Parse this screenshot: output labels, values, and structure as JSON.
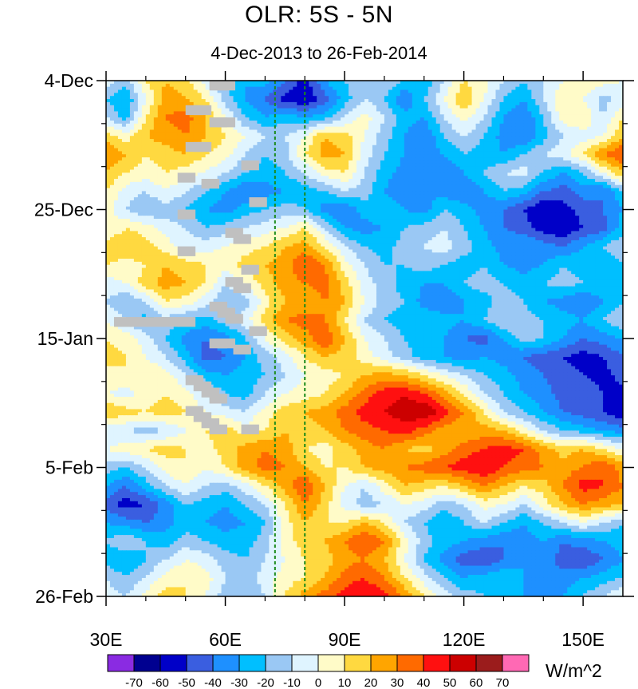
{
  "chart_data": {
    "type": "heatmap",
    "title": "OLR: 5S - 5N",
    "subtitle": "4-Dec-2013 to 26-Feb-2014",
    "xlabel": "",
    "ylabel": "",
    "xlim": [
      30,
      160
    ],
    "x_ticks": [
      {
        "value": 30,
        "label": "30E"
      },
      {
        "value": 60,
        "label": "60E"
      },
      {
        "value": 90,
        "label": "90E"
      },
      {
        "value": 120,
        "label": "120E"
      },
      {
        "value": 150,
        "label": "150E"
      }
    ],
    "ylim_days": [
      0,
      84
    ],
    "y_ticks": [
      {
        "day": 0,
        "label": "4-Dec"
      },
      {
        "day": 21,
        "label": "25-Dec"
      },
      {
        "day": 42,
        "label": "15-Jan"
      },
      {
        "day": 63,
        "label": "5-Feb"
      },
      {
        "day": 84,
        "label": "26-Feb"
      }
    ],
    "reference_lines_lon": [
      72.5,
      80
    ],
    "reference_line_color": "#1a8a1a",
    "missing_color": "#c0c0c0",
    "colorbar": {
      "unit_label": "W/m^2",
      "levels": [
        "-70",
        "-60",
        "-50",
        "-40",
        "-30",
        "-20",
        "-10",
        "0",
        "10",
        "20",
        "30",
        "40",
        "50",
        "60",
        "70"
      ],
      "colors": [
        "#8a2be2",
        "#000090",
        "#0000c8",
        "#3a5ee0",
        "#1e90ff",
        "#00bfff",
        "#9ac8f4",
        "#dff4ff",
        "#fffbc8",
        "#ffd940",
        "#ffa500",
        "#ff6a00",
        "#ff1010",
        "#cc0000",
        "#9b1c1c",
        "#ff69b4"
      ]
    },
    "anomaly_field": {
      "lon": [
        30,
        35,
        40,
        45,
        50,
        55,
        60,
        65,
        70,
        75,
        80,
        85,
        90,
        95,
        100,
        105,
        110,
        115,
        120,
        125,
        130,
        135,
        140,
        145,
        150,
        155,
        160
      ],
      "days": [
        0,
        3,
        6,
        9,
        12,
        15,
        18,
        21,
        24,
        27,
        30,
        33,
        36,
        39,
        42,
        45,
        48,
        51,
        54,
        57,
        60,
        63,
        66,
        69,
        72,
        75,
        78,
        81,
        84
      ],
      "values": [
        [
          -5,
          -15,
          10,
          20,
          15,
          -5,
          -20,
          -30,
          -25,
          -40,
          -55,
          -30,
          -20,
          -15,
          -10,
          -20,
          -30,
          -10,
          10,
          5,
          -10,
          -20,
          -10,
          0,
          10,
          5,
          0
        ],
        [
          -20,
          -30,
          0,
          25,
          20,
          10,
          -15,
          -30,
          -40,
          -55,
          -60,
          -45,
          -25,
          -10,
          -20,
          -40,
          -20,
          0,
          20,
          0,
          -20,
          -30,
          -10,
          10,
          0,
          -15,
          -5
        ],
        [
          -10,
          -25,
          10,
          30,
          35,
          20,
          0,
          -20,
          -30,
          -25,
          -30,
          -25,
          -10,
          5,
          -10,
          -25,
          -30,
          -10,
          5,
          -10,
          -30,
          -40,
          -20,
          5,
          10,
          -10,
          10
        ],
        [
          15,
          5,
          20,
          25,
          30,
          20,
          10,
          0,
          -10,
          -10,
          0,
          20,
          15,
          0,
          -15,
          -30,
          -40,
          -20,
          -10,
          -20,
          -35,
          -40,
          -25,
          -10,
          -5,
          0,
          20
        ],
        [
          30,
          20,
          10,
          15,
          20,
          10,
          5,
          -10,
          -20,
          -15,
          10,
          25,
          20,
          -5,
          -20,
          -30,
          -35,
          -30,
          -20,
          -25,
          -30,
          -20,
          -10,
          -5,
          10,
          30,
          40
        ],
        [
          20,
          10,
          5,
          10,
          5,
          0,
          -10,
          -20,
          -25,
          -20,
          -10,
          5,
          10,
          -10,
          -25,
          -35,
          -30,
          -40,
          -30,
          -20,
          -10,
          -5,
          -20,
          -30,
          -20,
          0,
          20
        ],
        [
          10,
          -5,
          -10,
          0,
          -10,
          -20,
          -30,
          -40,
          -35,
          -30,
          -25,
          -20,
          -10,
          -15,
          -30,
          -40,
          -30,
          -35,
          -40,
          -30,
          -20,
          -25,
          -40,
          -45,
          -35,
          -40,
          -20
        ],
        [
          5,
          -10,
          -20,
          -15,
          -20,
          -30,
          -35,
          -25,
          -20,
          -15,
          -20,
          -35,
          -40,
          -25,
          -20,
          -30,
          -35,
          -20,
          -25,
          -35,
          -40,
          -50,
          -60,
          -55,
          -45,
          -40,
          -30
        ],
        [
          0,
          10,
          5,
          -5,
          -10,
          -20,
          -15,
          -10,
          -5,
          0,
          10,
          -10,
          -30,
          -35,
          -30,
          -20,
          -15,
          -10,
          -20,
          -30,
          -40,
          -45,
          -55,
          -60,
          -50,
          -45,
          -25
        ],
        [
          15,
          20,
          15,
          5,
          -5,
          -5,
          0,
          5,
          10,
          20,
          25,
          10,
          -10,
          -20,
          -25,
          -15,
          -10,
          -5,
          -15,
          -25,
          -35,
          -30,
          -35,
          -40,
          -30,
          -20,
          -10
        ],
        [
          10,
          5,
          10,
          20,
          15,
          10,
          5,
          15,
          20,
          25,
          40,
          30,
          5,
          -10,
          -20,
          -20,
          -15,
          -20,
          -25,
          -20,
          -30,
          -35,
          -30,
          -20,
          -25,
          -30,
          -20
        ],
        [
          -5,
          0,
          15,
          25,
          20,
          10,
          -10,
          0,
          15,
          25,
          30,
          35,
          15,
          -5,
          -15,
          -25,
          -30,
          -30,
          -20,
          -15,
          -20,
          -25,
          -20,
          -15,
          -20,
          -25,
          -30
        ],
        [
          -10,
          -20,
          -10,
          10,
          5,
          -5,
          -20,
          -15,
          5,
          20,
          20,
          30,
          20,
          0,
          -15,
          -20,
          -35,
          -40,
          -30,
          -25,
          -15,
          -20,
          -30,
          -35,
          -40,
          -30,
          -20
        ],
        [
          0,
          -10,
          -25,
          -15,
          -20,
          -25,
          -15,
          -5,
          15,
          30,
          35,
          30,
          10,
          -10,
          -20,
          -25,
          -20,
          -25,
          -30,
          -20,
          -10,
          -15,
          -20,
          -25,
          -30,
          -20,
          -10
        ],
        [
          10,
          5,
          -5,
          -20,
          -35,
          -40,
          -35,
          -20,
          0,
          15,
          25,
          40,
          20,
          0,
          -10,
          -20,
          -25,
          -30,
          -40,
          -45,
          -30,
          -15,
          -20,
          -30,
          -40,
          -35,
          -30
        ],
        [
          15,
          10,
          0,
          -10,
          -25,
          -45,
          -40,
          -30,
          -15,
          -5,
          10,
          20,
          15,
          5,
          -5,
          -15,
          -25,
          -30,
          -35,
          -30,
          -35,
          -40,
          -45,
          -50,
          -55,
          -50,
          -40
        ],
        [
          5,
          10,
          10,
          5,
          -10,
          -25,
          -30,
          -25,
          -20,
          -10,
          0,
          5,
          10,
          20,
          25,
          20,
          10,
          0,
          -10,
          -20,
          -25,
          -35,
          -40,
          -45,
          -50,
          -55,
          -45
        ],
        [
          0,
          -5,
          5,
          10,
          5,
          -10,
          -20,
          -25,
          -10,
          0,
          5,
          10,
          20,
          35,
          45,
          50,
          40,
          25,
          10,
          -10,
          -20,
          -30,
          -35,
          -45,
          -40,
          -50,
          -55
        ],
        [
          20,
          15,
          10,
          15,
          10,
          0,
          -5,
          -10,
          5,
          15,
          20,
          25,
          35,
          45,
          50,
          55,
          60,
          45,
          30,
          10,
          -10,
          -20,
          -30,
          -40,
          -45,
          -50,
          -60
        ],
        [
          -10,
          -10,
          -15,
          -10,
          0,
          10,
          15,
          5,
          10,
          20,
          15,
          20,
          30,
          35,
          40,
          45,
          35,
          25,
          20,
          25,
          20,
          5,
          -10,
          -20,
          -25,
          -30,
          -35
        ],
        [
          0,
          5,
          10,
          15,
          10,
          5,
          15,
          25,
          30,
          25,
          10,
          5,
          15,
          25,
          30,
          20,
          15,
          25,
          35,
          40,
          45,
          40,
          25,
          15,
          20,
          10,
          0
        ],
        [
          -15,
          -20,
          -10,
          5,
          10,
          0,
          10,
          25,
          35,
          30,
          20,
          10,
          10,
          20,
          25,
          30,
          35,
          40,
          45,
          50,
          40,
          35,
          30,
          25,
          30,
          40,
          25
        ],
        [
          -30,
          -40,
          -25,
          -10,
          0,
          -10,
          -15,
          -5,
          10,
          25,
          40,
          20,
          0,
          -10,
          5,
          20,
          15,
          10,
          20,
          30,
          20,
          10,
          15,
          30,
          45,
          40,
          30
        ],
        [
          -45,
          -55,
          -50,
          -35,
          -20,
          -25,
          -30,
          -20,
          -10,
          10,
          30,
          15,
          -5,
          -15,
          -10,
          0,
          -5,
          -15,
          -10,
          5,
          0,
          -10,
          5,
          20,
          30,
          25,
          20
        ],
        [
          -30,
          -35,
          -40,
          -35,
          -25,
          -30,
          -35,
          -30,
          -20,
          5,
          20,
          10,
          10,
          20,
          10,
          -10,
          -20,
          -30,
          -20,
          -10,
          -20,
          -30,
          -20,
          -10,
          0,
          -10,
          -20
        ],
        [
          -20,
          -10,
          -20,
          -25,
          -15,
          -20,
          -25,
          -25,
          -15,
          5,
          15,
          20,
          30,
          40,
          30,
          5,
          -15,
          -25,
          -30,
          -35,
          -40,
          -35,
          -30,
          -40,
          -35,
          -30,
          -25
        ],
        [
          -25,
          -30,
          -20,
          -10,
          0,
          -5,
          -15,
          -20,
          -10,
          0,
          10,
          15,
          25,
          30,
          20,
          0,
          -20,
          -35,
          -45,
          -50,
          -40,
          -30,
          -35,
          -45,
          -50,
          -40,
          -30
        ],
        [
          -10,
          -20,
          -10,
          5,
          10,
          5,
          -10,
          -15,
          -5,
          5,
          10,
          20,
          35,
          40,
          30,
          10,
          -5,
          -20,
          -30,
          -25,
          -20,
          -30,
          -40,
          -35,
          -30,
          -25,
          -20
        ],
        [
          -5,
          -10,
          5,
          15,
          10,
          0,
          -15,
          -20,
          -10,
          10,
          25,
          35,
          45,
          50,
          45,
          30,
          10,
          -5,
          -15,
          -20,
          -25,
          -30,
          -35,
          -30,
          -20,
          -10,
          0
        ]
      ]
    },
    "missing_cells": [
      [
        56,
        0
      ],
      [
        58,
        0
      ],
      [
        50,
        4
      ],
      [
        52,
        4
      ],
      [
        56,
        6
      ],
      [
        58,
        6
      ],
      [
        50,
        10
      ],
      [
        52,
        10
      ],
      [
        64,
        13
      ],
      [
        48,
        15
      ],
      [
        54,
        16
      ],
      [
        66,
        19
      ],
      [
        48,
        21
      ],
      [
        60,
        24
      ],
      [
        62,
        25
      ],
      [
        48,
        27
      ],
      [
        64,
        30
      ],
      [
        60,
        32
      ],
      [
        62,
        33
      ],
      [
        56,
        36
      ],
      [
        58,
        37
      ],
      [
        60,
        38
      ],
      [
        32,
        38.5
      ],
      [
        36,
        38.5
      ],
      [
        40,
        38.5
      ],
      [
        44,
        38.5
      ],
      [
        48,
        38.5
      ],
      [
        66,
        40
      ],
      [
        56,
        42
      ],
      [
        58,
        42
      ],
      [
        62,
        43
      ],
      [
        50,
        48
      ],
      [
        52,
        49
      ],
      [
        54,
        50
      ],
      [
        56,
        51
      ],
      [
        50,
        53
      ],
      [
        52,
        54
      ],
      [
        54,
        55
      ],
      [
        56,
        56
      ],
      [
        64,
        56
      ]
    ]
  }
}
